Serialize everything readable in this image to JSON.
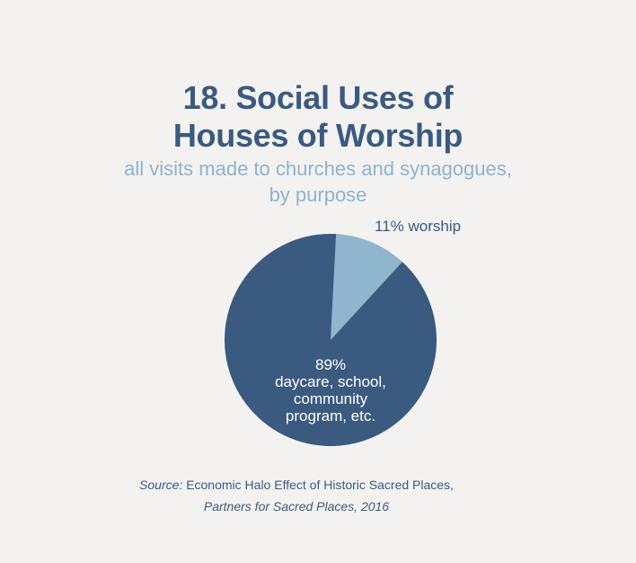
{
  "chart_data": {
    "type": "pie",
    "title": [
      "18. Social Uses of",
      "Houses of Worship"
    ],
    "subtitle": [
      "all visits made to churches and synagogues,",
      "by purpose"
    ],
    "slices": [
      {
        "label": "worship",
        "value": 11,
        "label_text": "11% worship",
        "color": "#8fb5cf"
      },
      {
        "label": "daycare, school, community program, etc.",
        "value": 89,
        "label_text": [
          "89%",
          "daycare, school,",
          "community",
          "program, etc."
        ],
        "color": "#3b5a80"
      }
    ]
  },
  "source": {
    "prefix": "Source:",
    "line1": "Economic Halo Effect of Historic Sacred Places,",
    "line2": "Partners for Sacred Places, 2016"
  },
  "colors": {
    "title": "#3b5a80",
    "subtitle": "#8fb2cf",
    "background": "#f3f2f0",
    "label_light": "#ffffff"
  }
}
